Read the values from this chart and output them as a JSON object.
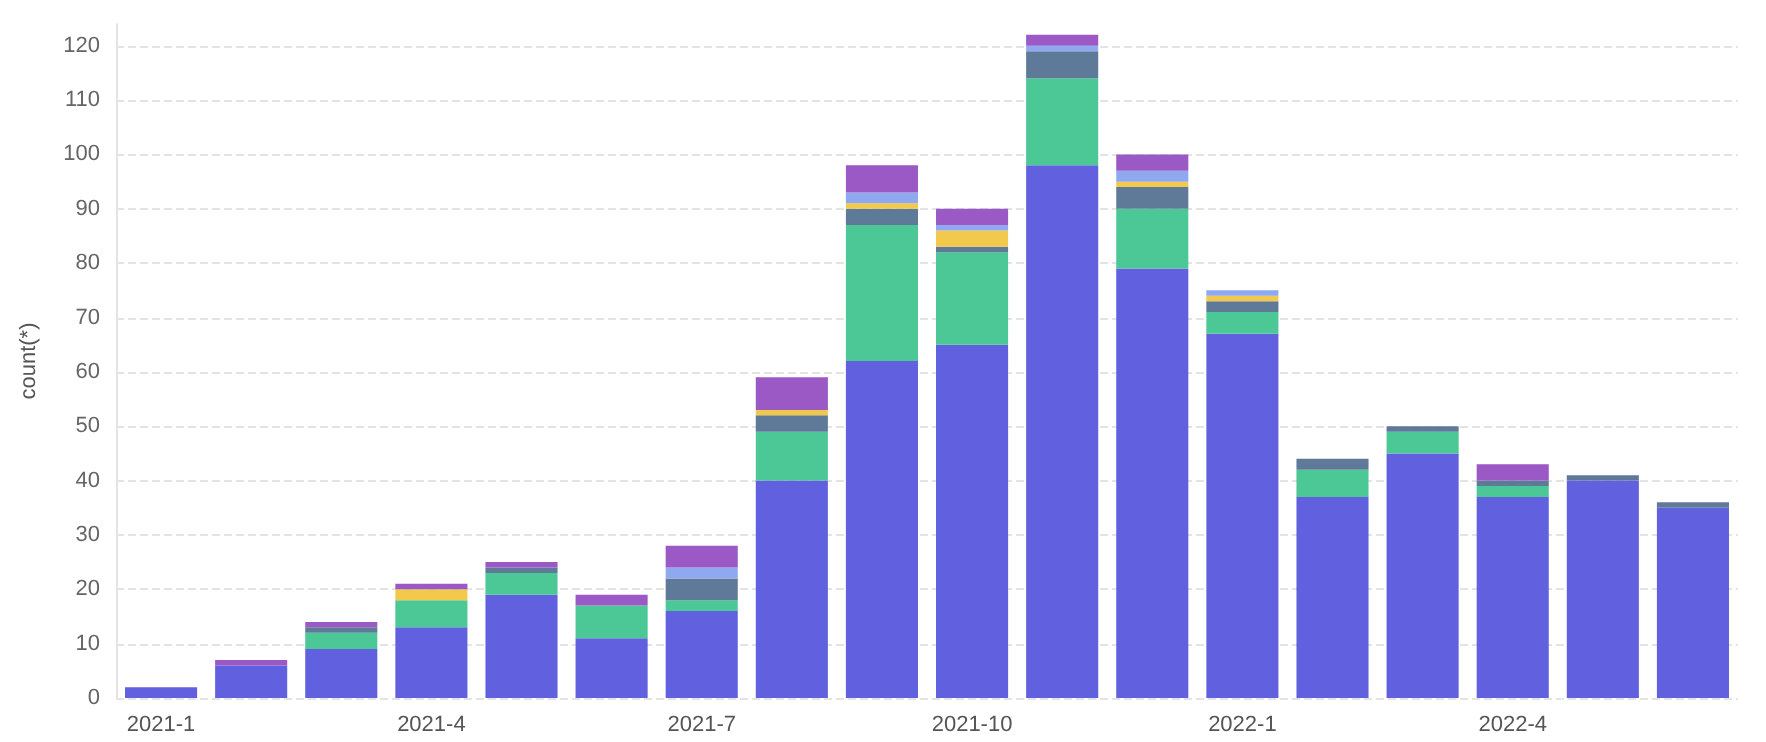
{
  "chart_data": {
    "type": "bar",
    "stacked": true,
    "ylabel": "count(*)",
    "categories": [
      "2021-1",
      null,
      null,
      "2021-4",
      null,
      null,
      "2021-7",
      null,
      null,
      "2021-10",
      null,
      null,
      "2022-1",
      null,
      null,
      "2022-4",
      null,
      null
    ],
    "series": [
      {
        "color": "#6161e0",
        "values": [
          2,
          6,
          9,
          13,
          19,
          11,
          16,
          40,
          62,
          65,
          98,
          79,
          67,
          37,
          45,
          37,
          40,
          35
        ]
      },
      {
        "color": "#4cc796",
        "values": [
          null,
          null,
          3,
          5,
          4,
          6,
          2,
          9,
          25,
          17,
          16,
          11,
          4,
          5,
          4,
          2,
          null,
          null
        ]
      },
      {
        "color": "#5f7a99",
        "values": [
          null,
          null,
          1,
          null,
          1,
          null,
          4,
          3,
          3,
          1,
          5,
          4,
          2,
          2,
          1,
          1,
          1,
          1
        ]
      },
      {
        "color": "#f2c94c",
        "values": [
          null,
          null,
          null,
          2,
          null,
          null,
          null,
          1,
          1,
          3,
          null,
          1,
          1,
          null,
          null,
          null,
          null,
          null
        ]
      },
      {
        "color": "#8fa8f0",
        "values": [
          null,
          null,
          null,
          null,
          null,
          null,
          2,
          null,
          2,
          1,
          1,
          2,
          1,
          null,
          null,
          null,
          null,
          null
        ]
      },
      {
        "color": "#9b59c6",
        "values": [
          null,
          1,
          1,
          1,
          1,
          2,
          4,
          6,
          5,
          3,
          2,
          3,
          null,
          null,
          null,
          3,
          null,
          null
        ]
      }
    ],
    "ylim": [
      0,
      124
    ],
    "yticks": [
      0,
      10,
      20,
      30,
      40,
      50,
      60,
      70,
      80,
      90,
      100,
      110,
      120
    ],
    "grid": "y"
  }
}
